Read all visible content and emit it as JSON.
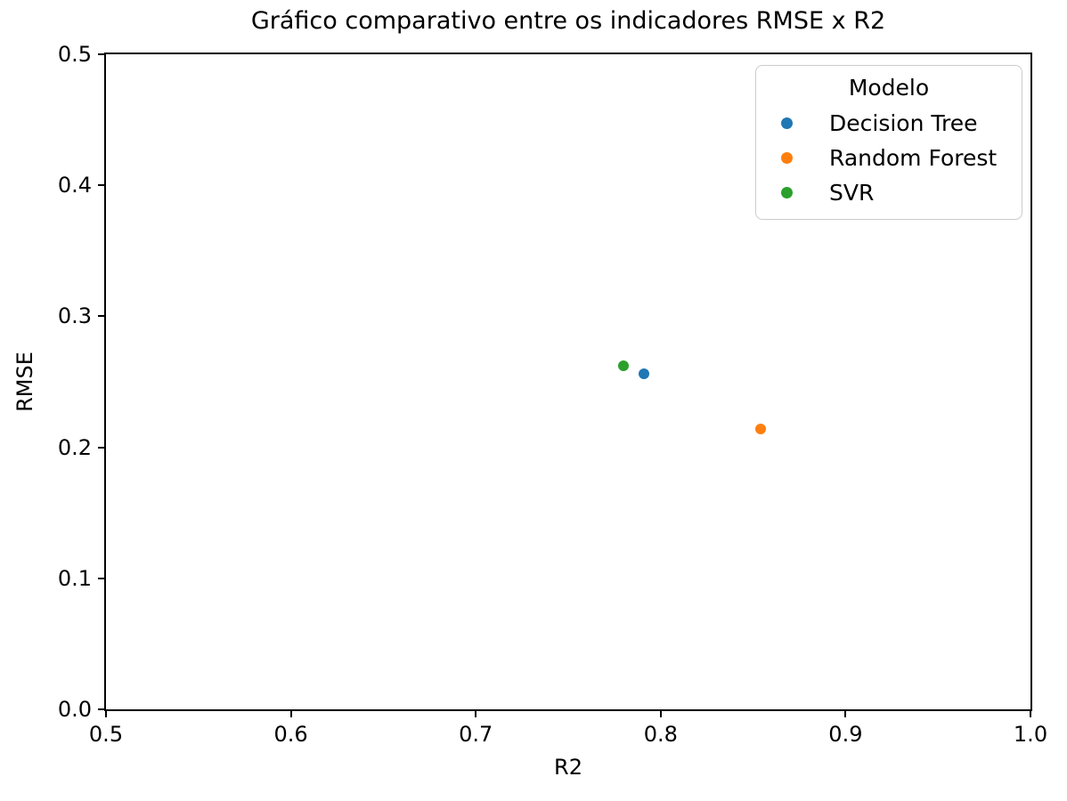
{
  "chart_data": {
    "type": "scatter",
    "title": "Gráfico comparativo entre os indicadores RMSE x R2",
    "xlabel": "R2",
    "ylabel": "RMSE",
    "xlim": [
      0.5,
      1.0
    ],
    "ylim": [
      0.0,
      0.5
    ],
    "xticks": [
      0.5,
      0.6,
      0.7,
      0.8,
      0.9,
      1.0
    ],
    "yticks": [
      0.0,
      0.1,
      0.2,
      0.3,
      0.4,
      0.5
    ],
    "grid": false,
    "legend": {
      "title": "Modelo",
      "position": "upper right"
    },
    "series": [
      {
        "name": "Decision Tree",
        "color": "#1f77b4",
        "points": [
          {
            "x": 0.791,
            "y": 0.256
          }
        ]
      },
      {
        "name": "Random Forest",
        "color": "#ff7f0e",
        "points": [
          {
            "x": 0.854,
            "y": 0.214
          }
        ]
      },
      {
        "name": "SVR",
        "color": "#2ca02c",
        "points": [
          {
            "x": 0.78,
            "y": 0.262
          }
        ]
      }
    ],
    "colors": {
      "axis": "#000000",
      "background": "#ffffff",
      "legend_border": "#cccccc"
    }
  }
}
